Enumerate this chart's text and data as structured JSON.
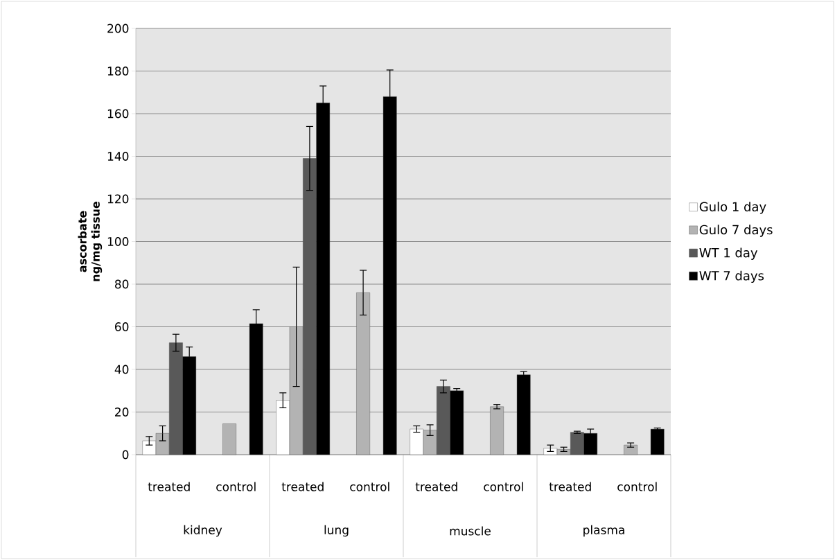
{
  "chart_data": {
    "type": "bar",
    "ylabel": "ascorbate ng/mg tissue",
    "categories": [
      "treated",
      "control",
      "treated",
      "control",
      "treated",
      "control",
      "treated",
      "control"
    ],
    "series": [
      {
        "name": "Gulo 1 day",
        "color": "#ffffff",
        "values": [
          6.5,
          null,
          25.5,
          null,
          12,
          null,
          3,
          null
        ],
        "errors": [
          2,
          null,
          3.5,
          null,
          1.5,
          null,
          1.5,
          null
        ]
      },
      {
        "name": "Gulo 7 days",
        "color": "#b3b3b3",
        "values": [
          10,
          14.5,
          60,
          76,
          11.5,
          22.5,
          2.5,
          4.5
        ],
        "errors": [
          3.5,
          null,
          28,
          10.5,
          2.5,
          1,
          1,
          1
        ]
      },
      {
        "name": "WT 1 day",
        "color": "#595959",
        "values": [
          52.5,
          null,
          139,
          null,
          32,
          null,
          10.5,
          null
        ],
        "errors": [
          4,
          null,
          15,
          null,
          3,
          null,
          0.5,
          null
        ]
      },
      {
        "name": "WT 7 days",
        "color": "#000000",
        "values": [
          46,
          61.5,
          165,
          168,
          30,
          37.5,
          10,
          12
        ],
        "errors": [
          4.5,
          6.5,
          8,
          12.5,
          1,
          1.5,
          2,
          0.5
        ]
      }
    ],
    "annotations": [
      "kidney",
      "lung",
      "muscle",
      "plasma"
    ],
    "ylim": [
      0,
      200
    ],
    "yticks": [
      0,
      20,
      40,
      60,
      80,
      100,
      120,
      140,
      160,
      180,
      200
    ],
    "grid": "y",
    "legend": "right"
  }
}
